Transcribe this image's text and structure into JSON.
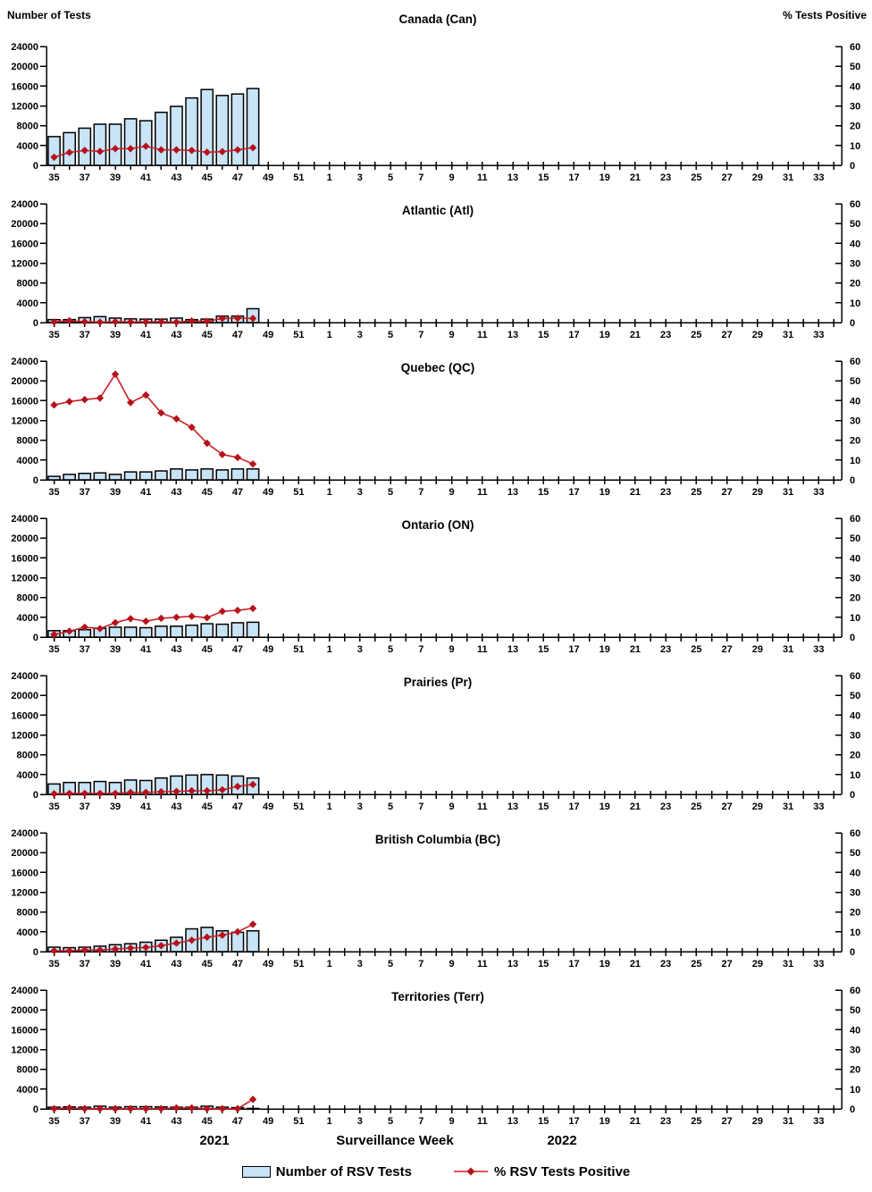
{
  "page": {
    "left_axis_title": "Number of Tests",
    "right_axis_title": "% Tests Positive",
    "captions": {
      "year_left": "2021",
      "x_title": "Surveillance Week",
      "year_right": "2022"
    },
    "legend": {
      "bars_label": "Number of RSV Tests",
      "line_label": "% RSV Tests Positive"
    }
  },
  "colors": {
    "bar_fill": "#C9E3F7",
    "bar_stroke": "#000000",
    "line": "#CC2027",
    "marker": "#B5121B",
    "axis": "#000000",
    "text": "#000000",
    "background": "#FFFFFF"
  },
  "chart_data": {
    "type": "bar",
    "subtype": "multi-panel combo bar+line, bars = number of RSV tests (left axis), line = % RSV tests positive (right axis)",
    "x": {
      "weeks_2021": [
        35,
        36,
        37,
        38,
        39,
        40,
        41,
        42,
        43,
        44,
        45,
        46,
        47,
        48,
        49,
        50,
        51,
        52
      ],
      "weeks_2022": [
        1,
        2,
        3,
        4,
        5,
        6,
        7,
        8,
        9,
        10,
        11,
        12,
        13,
        14,
        15,
        16,
        17,
        18,
        19,
        20,
        21,
        22,
        23,
        24,
        25,
        26,
        27,
        28,
        29,
        30,
        31,
        32,
        33,
        34
      ],
      "tick_label_rule": "odd weeks labeled"
    },
    "y_left": {
      "title": "Number of Tests",
      "min": 0,
      "max": 24000,
      "step": 4000,
      "ticks": [
        0,
        4000,
        8000,
        12000,
        16000,
        20000,
        24000
      ]
    },
    "y_right": {
      "title": "% Tests Positive",
      "min": 0,
      "max": 60,
      "step": 10,
      "ticks": [
        0,
        10,
        20,
        30,
        40,
        50,
        60
      ]
    },
    "series_names": [
      "Number of RSV Tests",
      "% RSV Tests Positive"
    ],
    "panels": [
      {
        "title": "Canada (Can)",
        "region": "Canada",
        "abbr": "Can",
        "weeks": [
          35,
          36,
          37,
          38,
          39,
          40,
          41,
          42,
          43,
          44,
          45,
          46,
          47,
          48
        ],
        "tests": [
          5800,
          6600,
          7500,
          8300,
          8300,
          9400,
          9000,
          10700,
          11900,
          13600,
          15300,
          14100,
          14400,
          15500
        ],
        "pct_positive": [
          4.1,
          6.5,
          7.5,
          7.0,
          8.4,
          8.4,
          9.6,
          7.8,
          7.8,
          7.5,
          6.6,
          6.9,
          7.8,
          8.9
        ]
      },
      {
        "title": "Atlantic (Atl)",
        "region": "Atlantic",
        "abbr": "Atl",
        "weeks": [
          35,
          36,
          37,
          38,
          39,
          40,
          41,
          42,
          43,
          44,
          45,
          46,
          47,
          48
        ],
        "tests": [
          600,
          600,
          1000,
          1200,
          900,
          750,
          700,
          700,
          900,
          600,
          700,
          1300,
          1300,
          2800
        ],
        "pct_positive": [
          0.3,
          0.9,
          0.4,
          0.2,
          0.4,
          0.3,
          0.3,
          0.4,
          0.2,
          0.8,
          0.6,
          2.1,
          2.2,
          2.1
        ]
      },
      {
        "title": "Quebec (QC)",
        "region": "Quebec",
        "abbr": "QC",
        "weeks": [
          35,
          36,
          37,
          38,
          39,
          40,
          41,
          42,
          43,
          44,
          45,
          46,
          47,
          48
        ],
        "tests": [
          700,
          1100,
          1300,
          1400,
          1100,
          1600,
          1600,
          1800,
          2200,
          2000,
          2200,
          2000,
          2200,
          2200
        ],
        "pct_positive": [
          37.8,
          39.5,
          40.5,
          41.3,
          53.3,
          39.0,
          42.8,
          33.8,
          30.8,
          26.5,
          18.5,
          12.8,
          11.3,
          8.0
        ]
      },
      {
        "title": "Ontario (ON)",
        "region": "Ontario",
        "abbr": "ON",
        "weeks": [
          35,
          36,
          37,
          38,
          39,
          40,
          41,
          42,
          43,
          44,
          45,
          46,
          47,
          48
        ],
        "tests": [
          1300,
          1300,
          1500,
          1800,
          2000,
          2000,
          1900,
          2200,
          2200,
          2400,
          2700,
          2600,
          2900,
          3000
        ],
        "pct_positive": [
          1.3,
          3.0,
          5.0,
          4.3,
          7.3,
          9.3,
          8.0,
          9.5,
          10.0,
          10.5,
          9.8,
          13.0,
          13.5,
          14.5
        ]
      },
      {
        "title": "Prairies (Pr)",
        "region": "Prairies",
        "abbr": "Pr",
        "weeks": [
          35,
          36,
          37,
          38,
          39,
          40,
          41,
          42,
          43,
          44,
          45,
          46,
          47,
          48
        ],
        "tests": [
          2100,
          2400,
          2400,
          2600,
          2400,
          2900,
          2800,
          3300,
          3700,
          3900,
          4000,
          3900,
          3700,
          3300
        ],
        "pct_positive": [
          0.3,
          0.5,
          0.5,
          0.5,
          0.5,
          1.0,
          1.0,
          1.3,
          1.5,
          1.8,
          1.8,
          2.3,
          4.0,
          5.0
        ]
      },
      {
        "title": "British Columbia (BC)",
        "region": "British Columbia",
        "abbr": "BC",
        "weeks": [
          35,
          36,
          37,
          38,
          39,
          40,
          41,
          42,
          43,
          44,
          45,
          46,
          47,
          48
        ],
        "tests": [
          900,
          800,
          900,
          1100,
          1400,
          1600,
          1900,
          2300,
          2900,
          4600,
          4900,
          4200,
          3900,
          4200
        ],
        "pct_positive": [
          0.4,
          0.4,
          0.8,
          0.8,
          1.3,
          1.8,
          2.1,
          3.0,
          4.3,
          5.8,
          7.3,
          8.3,
          10.0,
          13.8
        ]
      },
      {
        "title": "Territories (Terr)",
        "region": "Territories",
        "abbr": "Terr",
        "weeks": [
          35,
          36,
          37,
          38,
          39,
          40,
          41,
          42,
          43,
          44,
          45,
          46,
          47,
          48
        ],
        "tests": [
          350,
          400,
          350,
          550,
          350,
          450,
          450,
          400,
          350,
          350,
          550,
          350,
          250,
          100
        ],
        "pct_positive": [
          0.1,
          0.5,
          0.1,
          0.1,
          0.1,
          0.1,
          0.1,
          0.1,
          0.5,
          0.5,
          0.1,
          0.1,
          0.1,
          4.8
        ]
      }
    ]
  }
}
